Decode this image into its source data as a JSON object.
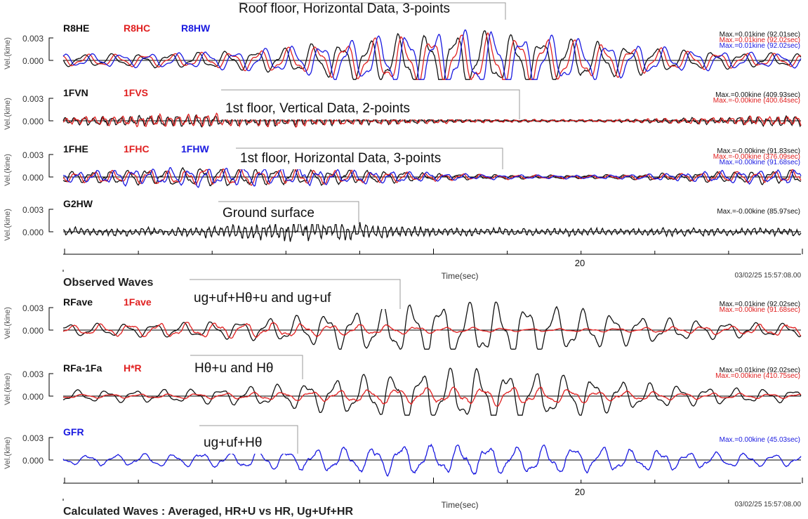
{
  "colors": {
    "black": "#111111",
    "red": "#e02020",
    "blue": "#1a1ae0",
    "axis": "#000000"
  },
  "shared": {
    "ylabel": "Vel.(kine)",
    "ytick_top": "0.003",
    "ytick_zero": "0.000",
    "xlabel": "Time(sec)",
    "x_tick_label": "20",
    "timestamp": "03/02/25 15:57:08.00"
  },
  "sections": [
    {
      "caption": "Observed Waves"
    },
    {
      "caption": "Calculated Waves : Averaged, HR+U vs HR, Ug+Uf+HR"
    }
  ],
  "chart_data": [
    {
      "type": "line",
      "section": 0,
      "annotation": "Roof floor, Horizontal Data, 3-points",
      "ylabel": "Vel.(kine)",
      "ylim": [
        -0.0035,
        0.0045
      ],
      "x_tick_label": "20",
      "series": [
        {
          "name": "R8HE",
          "color": "#111111",
          "max_label": "Max.=0.01kine (92.01sec)",
          "params": {
            "amp": 1.0,
            "freq": 0.18,
            "seed": 1,
            "noise": 0.08,
            "env": "roof"
          }
        },
        {
          "name": "R8HC",
          "color": "#e02020",
          "max_label": "Max.=0.01kine (92.02sec)",
          "params": {
            "amp": 0.95,
            "freq": 0.18,
            "seed": 2,
            "noise": 0.06,
            "env": "roof"
          }
        },
        {
          "name": "R8HW",
          "color": "#1a1ae0",
          "max_label": "Max.=0.01kine (92.02sec)",
          "params": {
            "amp": 1.05,
            "freq": 0.18,
            "seed": 3,
            "noise": 0.06,
            "env": "roof"
          }
        }
      ]
    },
    {
      "type": "line",
      "section": 0,
      "annotation": "1st floor, Vertical Data, 2-points",
      "ylabel": "Vel.(kine)",
      "ylim": [
        -0.0035,
        0.0045
      ],
      "x_tick_label": "20",
      "series": [
        {
          "name": "1FVN",
          "color": "#111111",
          "max_label": "Max.=0.00kine (409.93sec)",
          "params": {
            "amp": 0.22,
            "freq": 0.55,
            "seed": 4,
            "noise": 0.4,
            "env": "flat"
          }
        },
        {
          "name": "1FVS",
          "color": "#e02020",
          "max_label": "Max.=-0.00kine (400.64sec)",
          "params": {
            "amp": 0.22,
            "freq": 0.55,
            "seed": 5,
            "noise": 0.4,
            "env": "flat"
          }
        }
      ]
    },
    {
      "type": "line",
      "section": 0,
      "annotation": "1st floor, Horizontal Data, 3-points",
      "ylabel": "Vel.(kine)",
      "ylim": [
        -0.0035,
        0.0045
      ],
      "x_tick_label": "20",
      "series": [
        {
          "name": "1FHE",
          "color": "#111111",
          "max_label": "Max.=-0.00kine (91.83sec)",
          "params": {
            "amp": 0.35,
            "freq": 0.28,
            "seed": 6,
            "noise": 0.25,
            "env": "flat"
          }
        },
        {
          "name": "1FHC",
          "color": "#e02020",
          "max_label": "Max.=-0.00kine (376.09sec)",
          "params": {
            "amp": 0.33,
            "freq": 0.28,
            "seed": 7,
            "noise": 0.25,
            "env": "flat"
          }
        },
        {
          "name": "1FHW",
          "color": "#1a1ae0",
          "max_label": "Max.=0.00kine (91.68sec)",
          "params": {
            "amp": 0.36,
            "freq": 0.28,
            "seed": 8,
            "noise": 0.25,
            "env": "flat"
          }
        }
      ]
    },
    {
      "type": "line",
      "section": 0,
      "annotation": "Ground surface",
      "ylabel": "Vel.(kine)",
      "ylim": [
        -0.0035,
        0.0045
      ],
      "x_tick_label": "20",
      "series": [
        {
          "name": "G2HW",
          "color": "#111111",
          "max_label": "Max.=-0.00kine (85.97sec)",
          "params": {
            "amp": 0.25,
            "freq": 0.85,
            "seed": 9,
            "noise": 0.6,
            "env": "ground"
          }
        }
      ]
    },
    {
      "type": "line",
      "section": 1,
      "annotation": "ug+uf+Hθ+u and ug+uf",
      "ylabel": "Vel.(kine)",
      "ylim": [
        -0.0035,
        0.0045
      ],
      "x_tick_label": "20",
      "series": [
        {
          "name": "RFave",
          "color": "#111111",
          "max_label": "Max.=0.01kine (92.02sec)",
          "params": {
            "amp": 1.0,
            "freq": 0.18,
            "seed": 10,
            "noise": 0.06,
            "env": "roof"
          }
        },
        {
          "name": "1Fave",
          "color": "#e02020",
          "max_label": "Max.=0.00kine (91.68sec)",
          "params": {
            "amp": 0.3,
            "freq": 0.18,
            "seed": 11,
            "noise": 0.2,
            "env": "flat"
          }
        }
      ]
    },
    {
      "type": "line",
      "section": 1,
      "annotation": "Hθ+u and Hθ",
      "ylabel": "Vel.(kine)",
      "ylim": [
        -0.0035,
        0.0045
      ],
      "x_tick_label": "20",
      "series": [
        {
          "name": "RFa-1Fa",
          "color": "#111111",
          "max_label": "Max.=0.01kine (92.02sec)",
          "params": {
            "amp": 0.95,
            "freq": 0.18,
            "seed": 12,
            "noise": 0.07,
            "env": "roof"
          }
        },
        {
          "name": "H*R",
          "color": "#e02020",
          "max_label": "Max.=0.00kine (410.75sec)",
          "params": {
            "amp": 0.32,
            "freq": 0.18,
            "seed": 13,
            "noise": 0.2,
            "env": "roof"
          }
        }
      ]
    },
    {
      "type": "line",
      "section": 1,
      "annotation": "ug+uf+Hθ",
      "ylabel": "Vel.(kine)",
      "ylim": [
        -0.0035,
        0.0045
      ],
      "x_tick_label": "20",
      "series": [
        {
          "name": "GFR",
          "color": "#1a1ae0",
          "max_label": "Max.=0.00kine (45.03sec)",
          "params": {
            "amp": 0.55,
            "freq": 0.18,
            "seed": 14,
            "noise": 0.18,
            "env": "mid"
          }
        }
      ]
    }
  ]
}
